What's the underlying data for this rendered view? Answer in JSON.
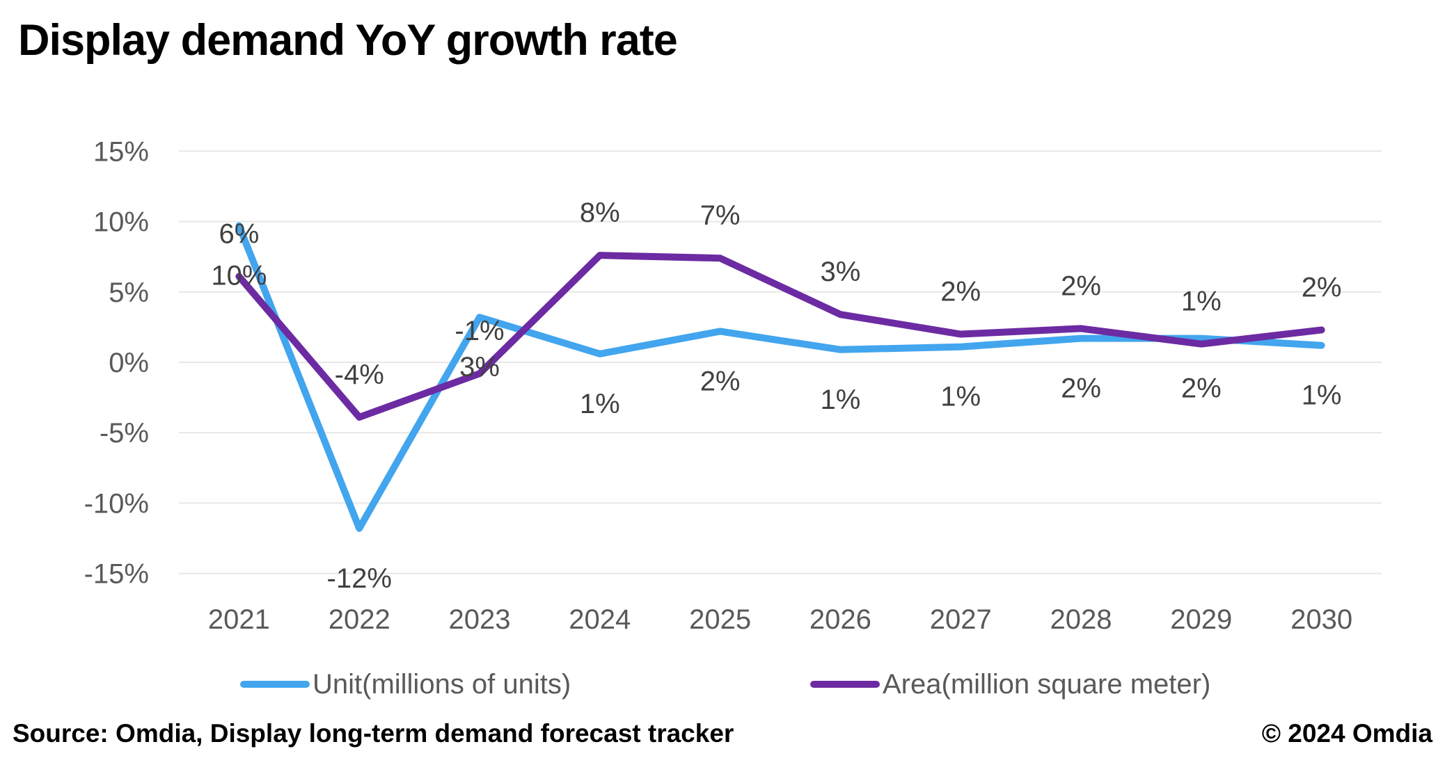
{
  "page": {
    "title": "Display demand YoY growth rate",
    "footer_left": "Source: Omdia, Display long-term demand forecast tracker",
    "footer_right": "© 2024 Omdia"
  },
  "colors": {
    "unit_series": "#42A5EE",
    "area_series": "#6C2BA2",
    "gridline": "#E7E7E7",
    "axis_label": "#595959",
    "data_label": "#404040",
    "title_text": "#000000"
  },
  "legend": {
    "position": "bottom",
    "items": [
      {
        "label": "Unit(millions of units)",
        "color": "#42A5EE"
      },
      {
        "label": "Area(million square meter)",
        "color": "#6C2BA2"
      }
    ]
  },
  "chart_data": {
    "type": "line",
    "title": "Display demand YoY growth rate",
    "xlabel": "",
    "ylabel": "",
    "grid": true,
    "ylim": [
      -15,
      15
    ],
    "y_ticks": [
      {
        "value": 15,
        "label": "15%"
      },
      {
        "value": 10,
        "label": "10%"
      },
      {
        "value": 5,
        "label": "5%"
      },
      {
        "value": 0,
        "label": "0%"
      },
      {
        "value": -5,
        "label": "-5%"
      },
      {
        "value": -10,
        "label": "-10%"
      },
      {
        "value": -15,
        "label": "-15%"
      }
    ],
    "categories": [
      "2021",
      "2022",
      "2023",
      "2024",
      "2025",
      "2026",
      "2027",
      "2028",
      "2029",
      "2030"
    ],
    "series": [
      {
        "name": "Unit(millions of units)",
        "color": "#42A5EE",
        "label_position": "below",
        "labels": [
          "10%",
          "-12%",
          "3%",
          "1%",
          "2%",
          "1%",
          "1%",
          "2%",
          "2%",
          "1%"
        ],
        "values": [
          10,
          -12,
          3,
          1,
          2,
          1,
          1,
          2,
          2,
          1
        ],
        "plotted_values": [
          9.7,
          -11.8,
          3.2,
          0.6,
          2.2,
          0.9,
          1.1,
          1.7,
          1.7,
          1.2
        ]
      },
      {
        "name": "Area(million square meter)",
        "color": "#6C2BA2",
        "label_position": "above",
        "labels": [
          "6%",
          "-4%",
          "-1%",
          "8%",
          "7%",
          "3%",
          "2%",
          "2%",
          "1%",
          "2%"
        ],
        "values": [
          6,
          -4,
          -1,
          8,
          7,
          3,
          2,
          2,
          1,
          2
        ],
        "plotted_values": [
          6.1,
          -3.9,
          -0.8,
          7.6,
          7.4,
          3.4,
          2.0,
          2.4,
          1.3,
          2.3
        ]
      }
    ]
  }
}
